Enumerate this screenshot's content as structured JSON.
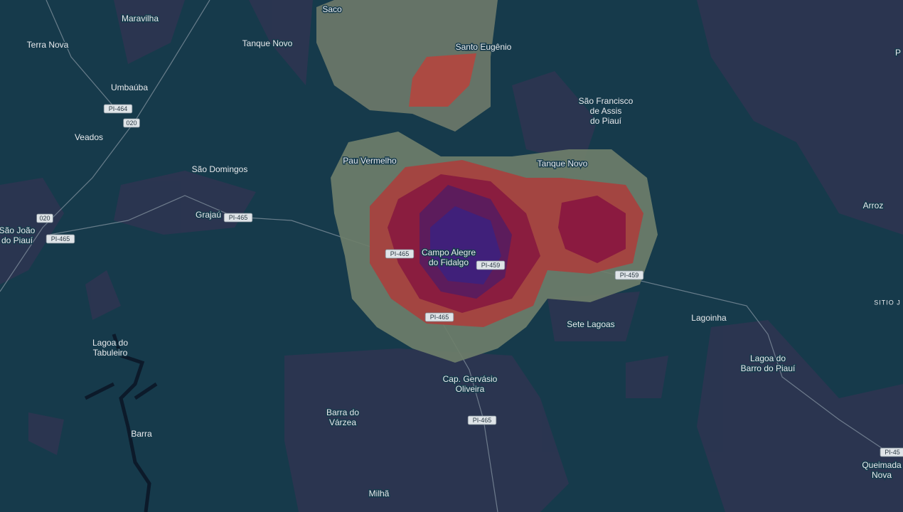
{
  "map": {
    "places": [
      {
        "lines": [
          "Saco"
        ]
      },
      {
        "lines": [
          "Maravilha"
        ]
      },
      {
        "lines": [
          "Terra Nova"
        ]
      },
      {
        "lines": [
          "Tanque Novo"
        ]
      },
      {
        "lines": [
          "Santo Eugênio"
        ]
      },
      {
        "lines": [
          "Umbaúba"
        ]
      },
      {
        "lines": [
          "São Francisco",
          "de Assis",
          "do Piauí"
        ]
      },
      {
        "lines": [
          "Veados"
        ]
      },
      {
        "lines": [
          "São Domingos"
        ]
      },
      {
        "lines": [
          "Pau Vermelho"
        ]
      },
      {
        "lines": [
          "Tanque Novo"
        ]
      },
      {
        "lines": [
          "Arroz"
        ]
      },
      {
        "lines": [
          "Grajaú"
        ]
      },
      {
        "lines": [
          "São João",
          "do Piauí"
        ]
      },
      {
        "lines": [
          "Campo Alegre",
          "do Fidalgo"
        ]
      },
      {
        "lines": [
          "Sete Lagoas"
        ]
      },
      {
        "lines": [
          "Lagoinha"
        ]
      },
      {
        "lines": [
          "SITIO J"
        ]
      },
      {
        "lines": [
          "Lagoa do",
          "Tabuleiro"
        ]
      },
      {
        "lines": [
          "Lagoa do",
          "Barro do Piauí"
        ]
      },
      {
        "lines": [
          "Cap. Gervásio",
          "Oliveira"
        ]
      },
      {
        "lines": [
          "Barra do",
          "Várzea"
        ]
      },
      {
        "lines": [
          "Barra"
        ]
      },
      {
        "lines": [
          "Milhã"
        ]
      },
      {
        "lines": [
          "Queimada",
          "Nova"
        ]
      },
      {
        "lines": [
          "P"
        ]
      }
    ],
    "roads": [
      "PI-464",
      "020",
      "020",
      "PI-465",
      "PI-465",
      "PI-465",
      "PI-459",
      "PI-459",
      "PI-465",
      "PI-465",
      "PI-45"
    ]
  }
}
